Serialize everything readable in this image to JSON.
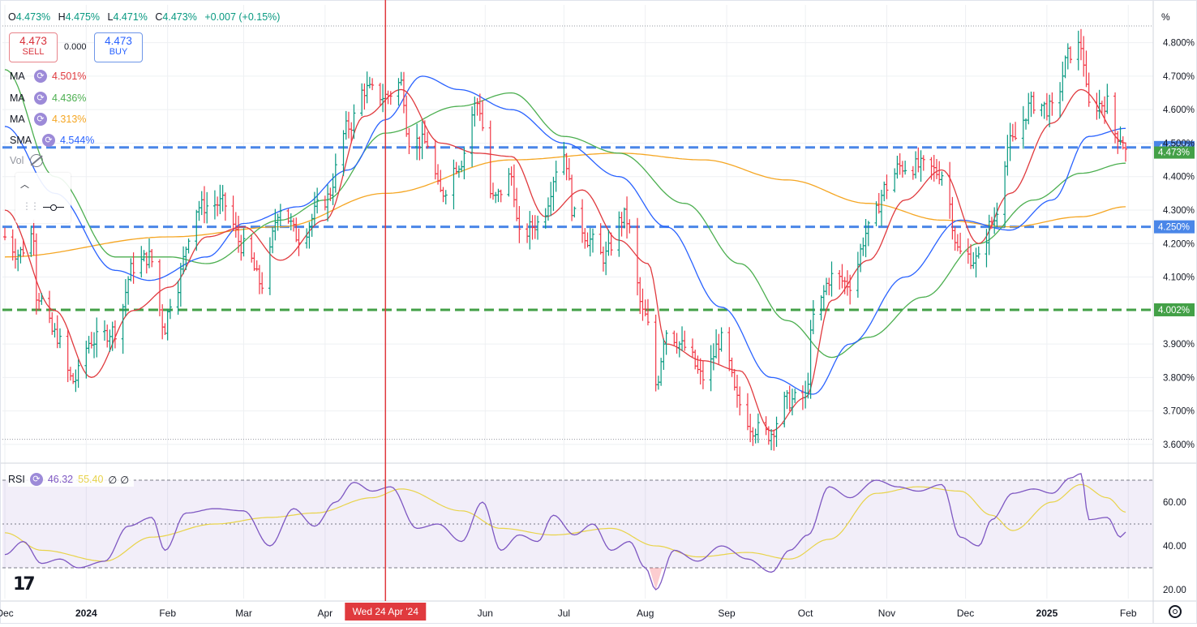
{
  "header": {
    "ohlc": [
      {
        "k": "O",
        "v": "4.473%"
      },
      {
        "k": "H",
        "v": "4.475%"
      },
      {
        "k": "L",
        "v": "4.471%"
      },
      {
        "k": "C",
        "v": "4.473%"
      },
      {
        "k": "",
        "v": "+0.007 (+0.15%)"
      }
    ],
    "sell_price": "4.473",
    "sell_label": "SELL",
    "buy_price": "4.473",
    "buy_label": "BUY",
    "spread": "0.000"
  },
  "legend": [
    {
      "name": "MA",
      "value": "4.501%",
      "color": "#e03a3e"
    },
    {
      "name": "MA",
      "value": "4.436%",
      "color": "#4caf50"
    },
    {
      "name": "MA",
      "value": "4.313%",
      "color": "#f5a623"
    },
    {
      "name": "SMA",
      "value": "4.544%",
      "color": "#2962ff"
    }
  ],
  "vol_label": "Vol",
  "rsi_legend": {
    "name": "RSI",
    "value": "46.32",
    "ma_value": "55.40",
    "extra1": "∅",
    "extra2": "∅",
    "rsi_color": "#7e57c2",
    "ma_color": "#e8d34a"
  },
  "price_axis_unit": "%",
  "chart_data": {
    "type": "ohlc",
    "title": "",
    "x_labels": [
      "Dec",
      "2024",
      "Feb",
      "Mar",
      "Apr",
      "Jun",
      "Jul",
      "Aug",
      "Sep",
      "Oct",
      "Nov",
      "Dec",
      "2025",
      "Feb"
    ],
    "crosshair_label": "Wed 24 Apr '24",
    "y_ticks": [
      "4.800%",
      "4.700%",
      "4.600%",
      "4.500%",
      "4.400%",
      "4.300%",
      "4.200%",
      "4.100%",
      "3.900%",
      "3.800%",
      "3.700%",
      "3.600%"
    ],
    "y_range": [
      3.6,
      4.85
    ],
    "horizontal_levels": [
      {
        "value": 4.487,
        "label": "4.487%",
        "color": "#4a86e8"
      },
      {
        "value": 4.25,
        "label": "4.250%",
        "color": "#4a86e8"
      },
      {
        "value": 4.002,
        "label": "4.002%",
        "color": "#43a047"
      }
    ],
    "last_price": {
      "value": 4.473,
      "label": "4.473%",
      "color": "#43a047"
    },
    "dotted_levels": [
      4.85,
      3.615
    ],
    "anchors": [
      [
        "2023-12-01",
        4.22
      ],
      [
        "2023-12-06",
        4.17
      ],
      [
        "2023-12-12",
        4.23
      ],
      [
        "2023-12-13",
        4.05
      ],
      [
        "2023-12-20",
        3.93
      ],
      [
        "2023-12-27",
        3.79
      ],
      [
        "2024-01-03",
        3.91
      ],
      [
        "2024-01-12",
        3.94
      ],
      [
        "2024-01-19",
        4.13
      ],
      [
        "2024-01-25",
        4.16
      ],
      [
        "2024-01-31",
        3.95
      ],
      [
        "2024-02-02",
        4.03
      ],
      [
        "2024-02-13",
        4.31
      ],
      [
        "2024-02-22",
        4.32
      ],
      [
        "2024-03-01",
        4.19
      ],
      [
        "2024-03-08",
        4.08
      ],
      [
        "2024-03-15",
        4.31
      ],
      [
        "2024-03-22",
        4.22
      ],
      [
        "2024-04-01",
        4.33
      ],
      [
        "2024-04-10",
        4.55
      ],
      [
        "2024-04-16",
        4.66
      ],
      [
        "2024-04-24",
        4.64
      ],
      [
        "2024-04-30",
        4.68
      ],
      [
        "2024-05-03",
        4.51
      ],
      [
        "2024-05-10",
        4.5
      ],
      [
        "2024-05-15",
        4.35
      ],
      [
        "2024-05-22",
        4.44
      ],
      [
        "2024-05-29",
        4.62
      ],
      [
        "2024-06-04",
        4.33
      ],
      [
        "2024-06-11",
        4.4
      ],
      [
        "2024-06-14",
        4.22
      ],
      [
        "2024-06-21",
        4.26
      ],
      [
        "2024-07-01",
        4.47
      ],
      [
        "2024-07-05",
        4.28
      ],
      [
        "2024-07-11",
        4.21
      ],
      [
        "2024-07-16",
        4.16
      ],
      [
        "2024-07-24",
        4.28
      ],
      [
        "2024-08-01",
        3.98
      ],
      [
        "2024-08-05",
        3.78
      ],
      [
        "2024-08-09",
        3.94
      ],
      [
        "2024-08-16",
        3.89
      ],
      [
        "2024-08-23",
        3.8
      ],
      [
        "2024-08-30",
        3.91
      ],
      [
        "2024-09-06",
        3.72
      ],
      [
        "2024-09-11",
        3.65
      ],
      [
        "2024-09-17",
        3.63
      ],
      [
        "2024-09-24",
        3.73
      ],
      [
        "2024-10-01",
        3.74
      ],
      [
        "2024-10-04",
        3.98
      ],
      [
        "2024-10-11",
        4.1
      ],
      [
        "2024-10-18",
        4.08
      ],
      [
        "2024-10-25",
        4.24
      ],
      [
        "2024-11-01",
        4.37
      ],
      [
        "2024-11-06",
        4.43
      ],
      [
        "2024-11-15",
        4.43
      ],
      [
        "2024-11-22",
        4.41
      ],
      [
        "2024-11-29",
        4.17
      ],
      [
        "2024-12-06",
        4.15
      ],
      [
        "2024-12-11",
        4.26
      ],
      [
        "2024-12-18",
        4.5
      ],
      [
        "2024-12-27",
        4.62
      ],
      [
        "2025-01-03",
        4.6
      ],
      [
        "2025-01-10",
        4.77
      ],
      [
        "2025-01-14",
        4.79
      ],
      [
        "2025-01-17",
        4.61
      ],
      [
        "2025-01-24",
        4.62
      ],
      [
        "2025-01-27",
        4.53
      ],
      [
        "2025-01-29",
        4.52
      ],
      [
        "2025-01-31",
        4.473
      ]
    ],
    "ma_fast": [
      [
        "2023-12-01",
        4.3
      ],
      [
        "2023-12-20",
        4.0
      ],
      [
        "2024-01-03",
        3.8
      ],
      [
        "2024-01-19",
        4.0
      ],
      [
        "2024-02-02",
        4.07
      ],
      [
        "2024-02-16",
        4.22
      ],
      [
        "2024-03-01",
        4.25
      ],
      [
        "2024-03-15",
        4.15
      ],
      [
        "2024-04-01",
        4.27
      ],
      [
        "2024-04-16",
        4.58
      ],
      [
        "2024-04-30",
        4.66
      ],
      [
        "2024-05-15",
        4.5
      ],
      [
        "2024-05-29",
        4.47
      ],
      [
        "2024-06-11",
        4.46
      ],
      [
        "2024-06-24",
        4.28
      ],
      [
        "2024-07-08",
        4.36
      ],
      [
        "2024-07-22",
        4.21
      ],
      [
        "2024-08-02",
        4.14
      ],
      [
        "2024-08-09",
        3.9
      ],
      [
        "2024-08-23",
        3.85
      ],
      [
        "2024-09-06",
        3.82
      ],
      [
        "2024-09-18",
        3.64
      ],
      [
        "2024-10-01",
        3.74
      ],
      [
        "2024-10-11",
        4.03
      ],
      [
        "2024-10-25",
        4.15
      ],
      [
        "2024-11-08",
        4.33
      ],
      [
        "2024-11-22",
        4.42
      ],
      [
        "2024-12-06",
        4.2
      ],
      [
        "2024-12-18",
        4.35
      ],
      [
        "2025-01-03",
        4.56
      ],
      [
        "2025-01-14",
        4.66
      ],
      [
        "2025-01-31",
        4.5
      ]
    ],
    "ma_slow": [
      [
        "2023-12-01",
        4.72
      ],
      [
        "2023-12-20",
        4.4
      ],
      [
        "2024-01-12",
        4.16
      ],
      [
        "2024-02-02",
        4.16
      ],
      [
        "2024-02-16",
        4.14
      ],
      [
        "2024-03-15",
        4.27
      ],
      [
        "2024-04-01",
        4.33
      ],
      [
        "2024-04-24",
        4.53
      ],
      [
        "2024-05-22",
        4.61
      ],
      [
        "2024-06-11",
        4.65
      ],
      [
        "2024-07-01",
        4.52
      ],
      [
        "2024-07-22",
        4.47
      ],
      [
        "2024-08-16",
        4.32
      ],
      [
        "2024-09-06",
        4.14
      ],
      [
        "2024-09-24",
        3.97
      ],
      [
        "2024-10-11",
        3.86
      ],
      [
        "2024-10-25",
        3.92
      ],
      [
        "2024-11-15",
        4.04
      ],
      [
        "2024-12-06",
        4.2
      ],
      [
        "2024-12-27",
        4.33
      ],
      [
        "2025-01-14",
        4.41
      ],
      [
        "2025-01-31",
        4.44
      ]
    ],
    "ma_long": [
      [
        "2023-12-01",
        4.16
      ],
      [
        "2024-02-02",
        4.22
      ],
      [
        "2024-03-15",
        4.25
      ],
      [
        "2024-04-24",
        4.35
      ],
      [
        "2024-06-11",
        4.45
      ],
      [
        "2024-07-22",
        4.47
      ],
      [
        "2024-08-23",
        4.45
      ],
      [
        "2024-09-24",
        4.39
      ],
      [
        "2024-10-25",
        4.32
      ],
      [
        "2024-11-22",
        4.27
      ],
      [
        "2024-12-18",
        4.25
      ],
      [
        "2025-01-14",
        4.28
      ],
      [
        "2025-01-31",
        4.31
      ]
    ],
    "sma": [
      [
        "2023-12-01",
        4.55
      ],
      [
        "2023-12-20",
        4.35
      ],
      [
        "2024-01-12",
        4.12
      ],
      [
        "2024-01-25",
        4.09
      ],
      [
        "2024-02-16",
        4.16
      ],
      [
        "2024-03-01",
        4.26
      ],
      [
        "2024-03-22",
        4.31
      ],
      [
        "2024-04-10",
        4.42
      ],
      [
        "2024-04-24",
        4.57
      ],
      [
        "2024-05-08",
        4.7
      ],
      [
        "2024-05-22",
        4.66
      ],
      [
        "2024-06-11",
        4.6
      ],
      [
        "2024-07-01",
        4.5
      ],
      [
        "2024-07-22",
        4.4
      ],
      [
        "2024-08-09",
        4.25
      ],
      [
        "2024-08-30",
        4.01
      ],
      [
        "2024-09-18",
        3.8
      ],
      [
        "2024-10-04",
        3.75
      ],
      [
        "2024-10-18",
        3.9
      ],
      [
        "2024-11-08",
        4.1
      ],
      [
        "2024-11-29",
        4.27
      ],
      [
        "2024-12-18",
        4.24
      ],
      [
        "2025-01-03",
        4.33
      ],
      [
        "2025-01-17",
        4.52
      ],
      [
        "2025-01-31",
        4.544
      ]
    ],
    "rsi": {
      "y_ticks": [
        "60.00",
        "40.00",
        "20.00"
      ],
      "y_range": [
        17,
        75
      ],
      "band": [
        30,
        70
      ],
      "midline": 50,
      "rsi": [
        [
          "2023-12-01",
          36
        ],
        [
          "2023-12-08",
          42
        ],
        [
          "2023-12-15",
          32
        ],
        [
          "2023-12-22",
          34
        ],
        [
          "2023-12-29",
          30
        ],
        [
          "2024-01-08",
          33
        ],
        [
          "2024-01-17",
          49
        ],
        [
          "2024-01-26",
          53
        ],
        [
          "2024-01-31",
          38
        ],
        [
          "2024-02-08",
          55
        ],
        [
          "2024-02-19",
          57
        ],
        [
          "2024-03-01",
          56
        ],
        [
          "2024-03-11",
          40
        ],
        [
          "2024-03-20",
          57
        ],
        [
          "2024-03-28",
          49
        ],
        [
          "2024-04-05",
          60
        ],
        [
          "2024-04-12",
          69
        ],
        [
          "2024-04-19",
          65
        ],
        [
          "2024-04-26",
          67
        ],
        [
          "2024-05-06",
          48
        ],
        [
          "2024-05-14",
          50
        ],
        [
          "2024-05-23",
          42
        ],
        [
          "2024-05-31",
          60
        ],
        [
          "2024-06-07",
          38
        ],
        [
          "2024-06-14",
          45
        ],
        [
          "2024-06-21",
          42
        ],
        [
          "2024-06-27",
          54
        ],
        [
          "2024-07-05",
          45
        ],
        [
          "2024-07-12",
          50
        ],
        [
          "2024-07-19",
          38
        ],
        [
          "2024-07-26",
          42
        ],
        [
          "2024-08-01",
          30
        ],
        [
          "2024-08-05",
          20
        ],
        [
          "2024-08-12",
          38
        ],
        [
          "2024-08-21",
          33
        ],
        [
          "2024-08-30",
          40
        ],
        [
          "2024-09-09",
          34
        ],
        [
          "2024-09-18",
          28
        ],
        [
          "2024-09-25",
          38
        ],
        [
          "2024-10-02",
          45
        ],
        [
          "2024-10-10",
          67
        ],
        [
          "2024-10-18",
          62
        ],
        [
          "2024-10-28",
          70
        ],
        [
          "2024-11-05",
          67
        ],
        [
          "2024-11-13",
          65
        ],
        [
          "2024-11-22",
          68
        ],
        [
          "2024-11-29",
          44
        ],
        [
          "2024-12-06",
          40
        ],
        [
          "2024-12-11",
          52
        ],
        [
          "2024-12-19",
          64
        ],
        [
          "2024-12-27",
          66
        ],
        [
          "2025-01-03",
          64
        ],
        [
          "2025-01-10",
          71
        ],
        [
          "2025-01-14",
          73
        ],
        [
          "2025-01-17",
          52
        ],
        [
          "2025-01-24",
          53
        ],
        [
          "2025-01-29",
          44
        ],
        [
          "2025-01-31",
          46.32
        ]
      ],
      "ma": [
        [
          "2023-12-01",
          46
        ],
        [
          "2023-12-15",
          38
        ],
        [
          "2024-01-08",
          33
        ],
        [
          "2024-01-26",
          44
        ],
        [
          "2024-02-19",
          50
        ],
        [
          "2024-03-11",
          53
        ],
        [
          "2024-03-28",
          55
        ],
        [
          "2024-04-19",
          62
        ],
        [
          "2024-04-30",
          66
        ],
        [
          "2024-05-23",
          56
        ],
        [
          "2024-06-07",
          48
        ],
        [
          "2024-06-27",
          45
        ],
        [
          "2024-07-19",
          48
        ],
        [
          "2024-08-05",
          40
        ],
        [
          "2024-08-21",
          35
        ],
        [
          "2024-09-09",
          37
        ],
        [
          "2024-09-25",
          34
        ],
        [
          "2024-10-10",
          43
        ],
        [
          "2024-10-28",
          64
        ],
        [
          "2024-11-13",
          67
        ],
        [
          "2024-11-29",
          65
        ],
        [
          "2024-12-11",
          54
        ],
        [
          "2024-12-19",
          47
        ],
        [
          "2025-01-03",
          60
        ],
        [
          "2025-01-14",
          68
        ],
        [
          "2025-01-24",
          62
        ],
        [
          "2025-01-31",
          55.4
        ]
      ]
    }
  }
}
